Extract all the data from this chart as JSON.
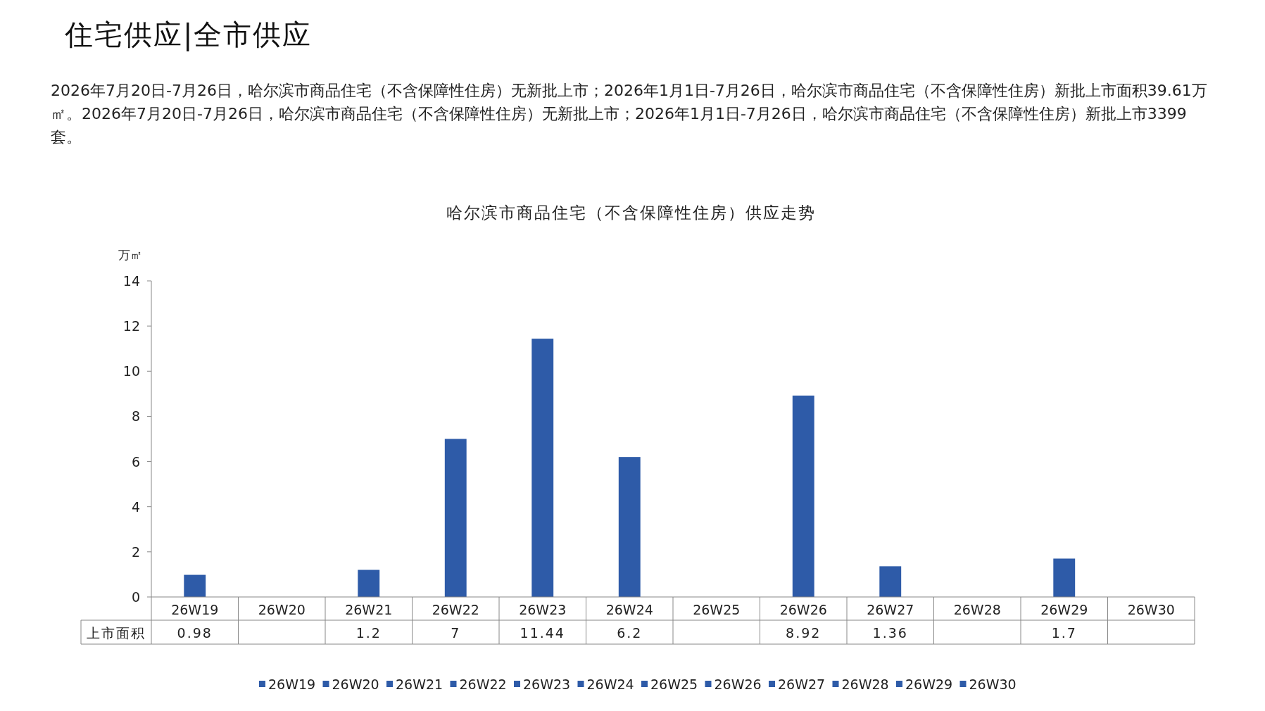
{
  "chart_data": {
    "type": "bar",
    "title": "住宅供应|全市供应",
    "subtitle": "哈尔滨市商品住宅（不含保障性住房）供应走势",
    "annotations": [
      "2026年7月20日-7月26日，哈尔滨市商品住宅（不含保障性住房）无新批上市；2026年1月1日-7月26日，哈尔滨市商品住宅（不含保障性住房）新批上市面积39.61万㎡。2026年7月20日-7月26日，哈尔滨市商品住宅（不含保障性住房）无新批上市；2026年1月1日-7月26日，哈尔滨市商品住宅（不含保障性住房）新批上市3399套。"
    ],
    "ylabel": "万㎡",
    "categories": [
      "26W19",
      "26W20",
      "26W21",
      "26W22",
      "26W23",
      "26W24",
      "26W25",
      "26W26",
      "26W27",
      "26W28",
      "26W29",
      "26W30"
    ],
    "series": [
      {
        "name": "上市面积",
        "colors": [
          "#2e5ba8",
          "#2e5ba8",
          "#2e5ba8",
          "#2e5ba8",
          "#2e5ba8",
          "#2e5ba8",
          "#2e5ba8",
          "#2e5ba8",
          "#2e5ba8",
          "#2e5ba8",
          "#2e5ba8",
          "#2e5ba8"
        ],
        "values": [
          0.98,
          null,
          1.2,
          7,
          11.44,
          6.2,
          null,
          8.92,
          1.36,
          null,
          1.7,
          null
        ]
      }
    ],
    "ylim": [
      0,
      14
    ],
    "yticks": [
      0,
      2,
      4,
      6,
      8,
      10,
      12,
      14
    ],
    "grid": false,
    "legend": "bottom",
    "data_labels": true
  }
}
